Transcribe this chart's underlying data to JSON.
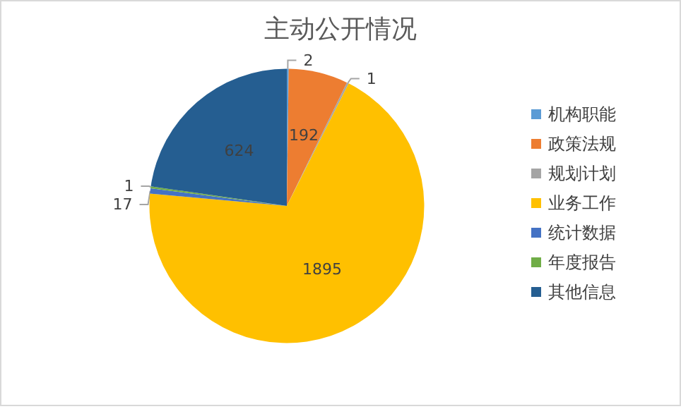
{
  "chart_data": {
    "type": "pie",
    "title": "主动公开情况",
    "categories": [
      "机构职能",
      "政策法规",
      "规划计划",
      "业务工作",
      "统计数据",
      "年度报告",
      "其他信息"
    ],
    "values": [
      2,
      192,
      1,
      1895,
      17,
      1,
      624
    ],
    "colors": [
      "#5b9bd5",
      "#ed7d31",
      "#a5a5a5",
      "#ffc000",
      "#4472c4",
      "#70ad47",
      "#255e91"
    ],
    "data_labels": true,
    "legend": "right"
  }
}
